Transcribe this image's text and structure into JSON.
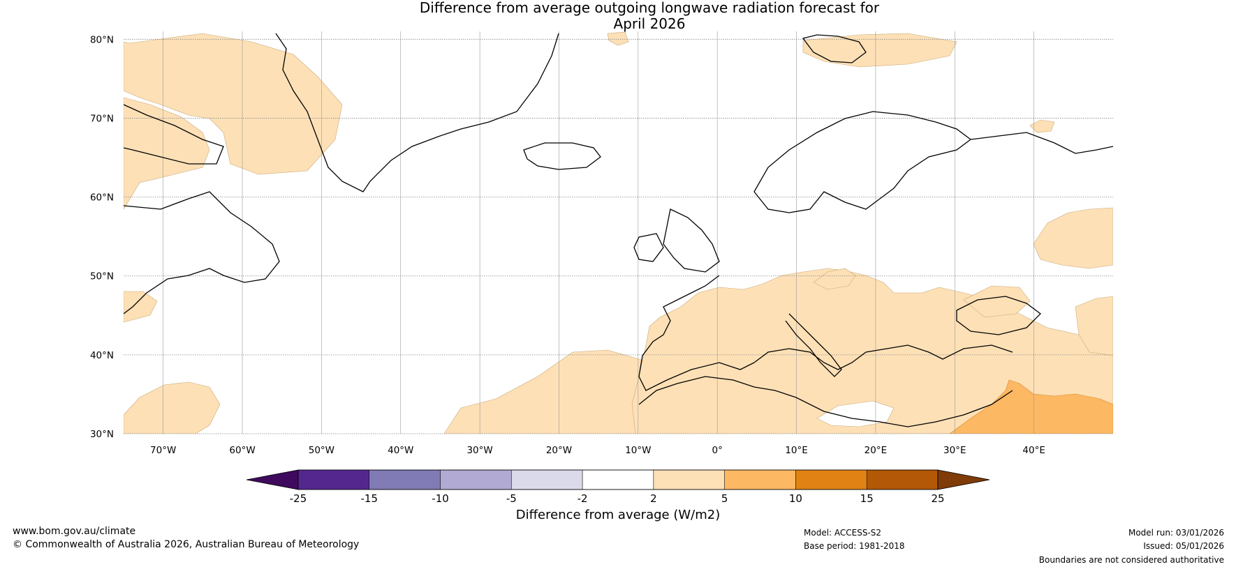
{
  "title": {
    "line1": "Difference from average outgoing longwave radiation forecast for",
    "line2": "April 2026"
  },
  "map": {
    "lat_labels": [
      "80°N",
      "70°N",
      "60°N",
      "50°N",
      "40°N",
      "30°N"
    ],
    "lon_labels": [
      "70°W",
      "60°W",
      "50°W",
      "40°W",
      "30°W",
      "20°W",
      "10°W",
      "0°",
      "10°E",
      "20°E",
      "30°E",
      "40°E"
    ],
    "lon_range": [
      -75,
      50
    ],
    "lat_range": [
      30,
      81
    ]
  },
  "colorbar": {
    "ticks": [
      "-25",
      "-15",
      "-10",
      "-5",
      "-2",
      "2",
      "5",
      "10",
      "15",
      "25"
    ],
    "colors": [
      "#3f0a5e",
      "#54278f",
      "#807bb4",
      "#b1abd3",
      "#dadaeb",
      "#ffffff",
      "#fde0b6",
      "#fdb863",
      "#e08214",
      "#b35806",
      "#7f3b08"
    ],
    "label": "Difference from average (W/m2)"
  },
  "footer": {
    "website": "www.bom.gov.au/climate",
    "copyright": "© Commonwealth of Australia 2026, Australian Bureau of Meteorology",
    "model": "Model: ACCESS-S2",
    "base_period": "Base period: 1981-2018",
    "model_run": "Model run: 03/01/2026",
    "issued": "Issued: 05/01/2026",
    "disclaimer": "Boundaries are not considered authoritative"
  }
}
